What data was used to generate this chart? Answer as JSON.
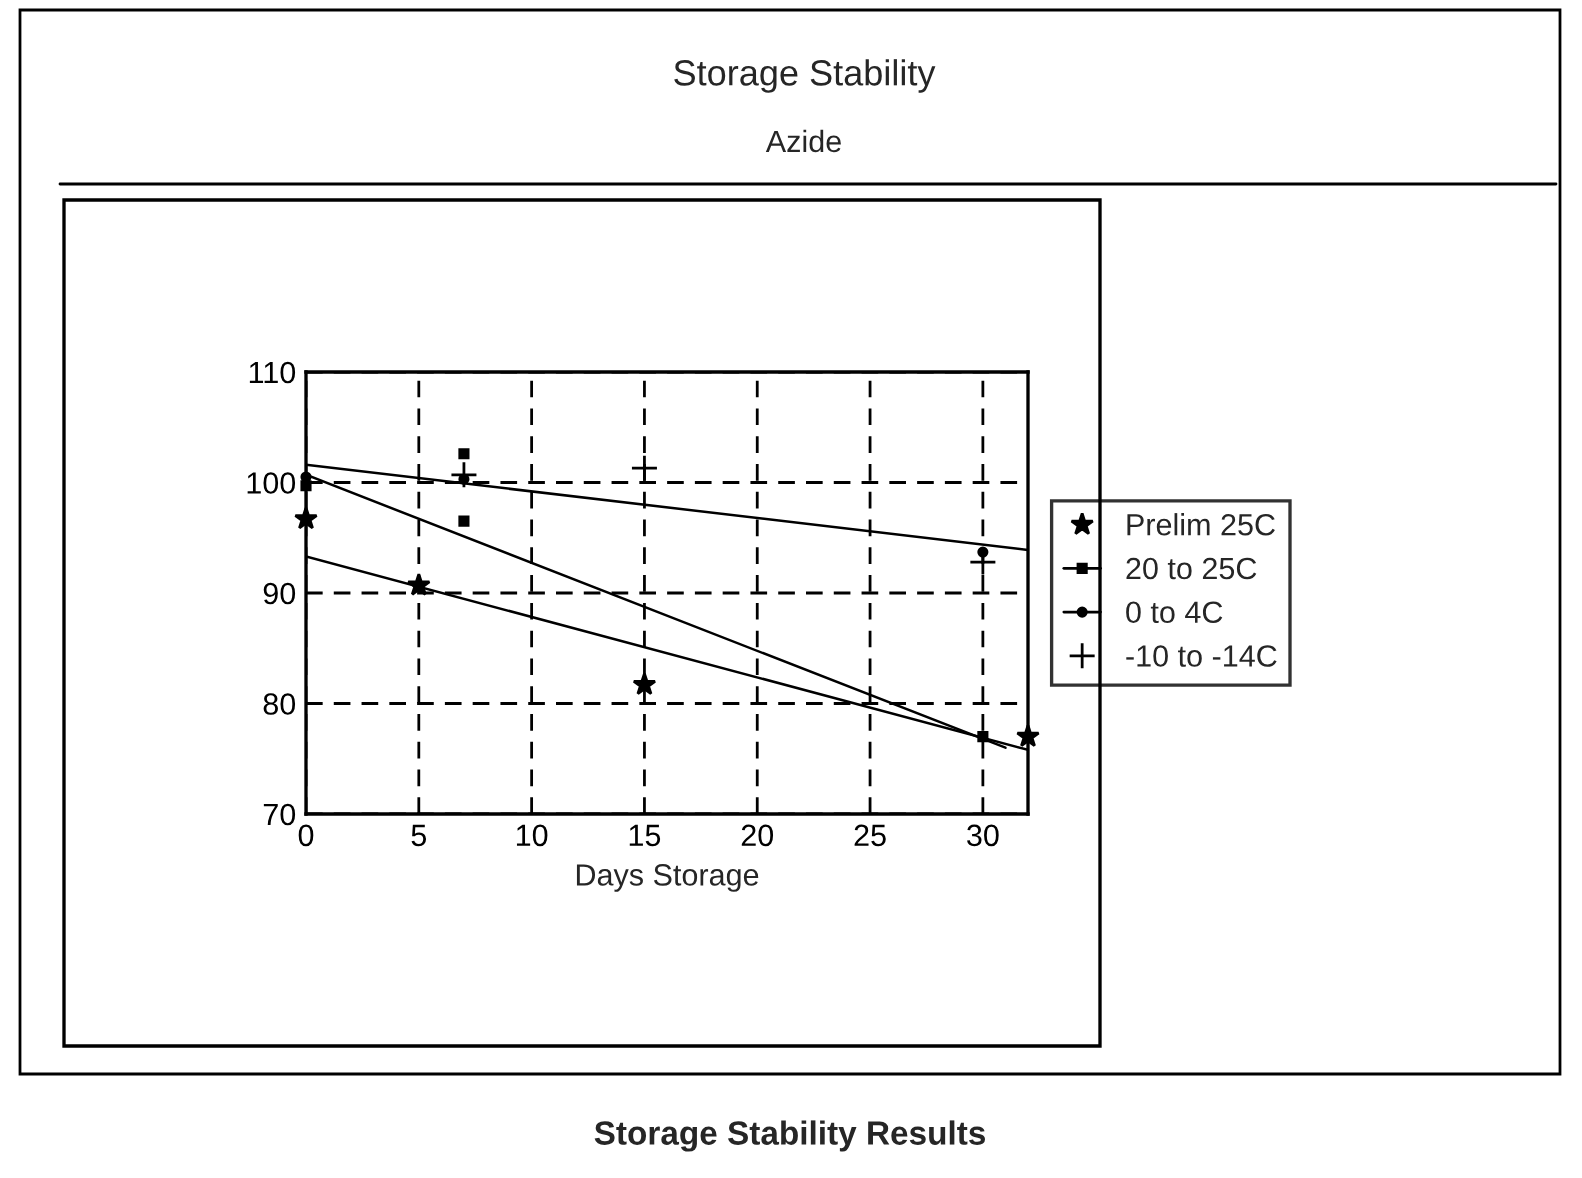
{
  "chart_data": {
    "type": "scatter",
    "title": "Storage Stability",
    "subtitle": "Azide",
    "xlabel": "Days Storage",
    "xlim": [
      0,
      32
    ],
    "xticks": [
      0,
      5,
      10,
      15,
      20,
      25,
      30
    ],
    "ylim": [
      70,
      110
    ],
    "yticks": [
      70,
      80,
      90,
      100,
      110
    ],
    "grid": true,
    "legend": "right",
    "series": [
      {
        "name": "Prelim 25C",
        "color": "#000000",
        "marker": "star",
        "x": [
          0,
          5,
          15,
          32
        ],
        "values": [
          96.7,
          90.7,
          81.7,
          77.0
        ]
      },
      {
        "name": "20 to 25C",
        "color": "#000000",
        "marker": "square",
        "x": [
          0,
          7,
          7,
          30
        ],
        "values": [
          99.7,
          102.6,
          96.5,
          77.0
        ]
      },
      {
        "name": "0 to 4C",
        "color": "#000000",
        "marker": "circle",
        "x": [
          0,
          7,
          30
        ],
        "values": [
          100.5,
          100.3,
          93.7
        ]
      },
      {
        "name": "-10 to -14C",
        "color": "#000000",
        "marker": "cross",
        "x": [
          7,
          15,
          30
        ],
        "values": [
          100.7,
          101.3,
          92.8
        ]
      },
      {
        "type": "line",
        "color": "#000000",
        "marker": "none",
        "x": [
          0,
          32
        ],
        "values": [
          93.3,
          75.8
        ]
      },
      {
        "type": "line",
        "color": "#000000",
        "marker": "none",
        "x": [
          0,
          31
        ],
        "values": [
          100.7,
          76.0
        ]
      },
      {
        "type": "line",
        "color": "#000000",
        "marker": "none",
        "x": [
          0,
          32
        ],
        "values": [
          101.6,
          93.9
        ]
      }
    ],
    "annotations": [
      "Storage Stability Results"
    ]
  }
}
